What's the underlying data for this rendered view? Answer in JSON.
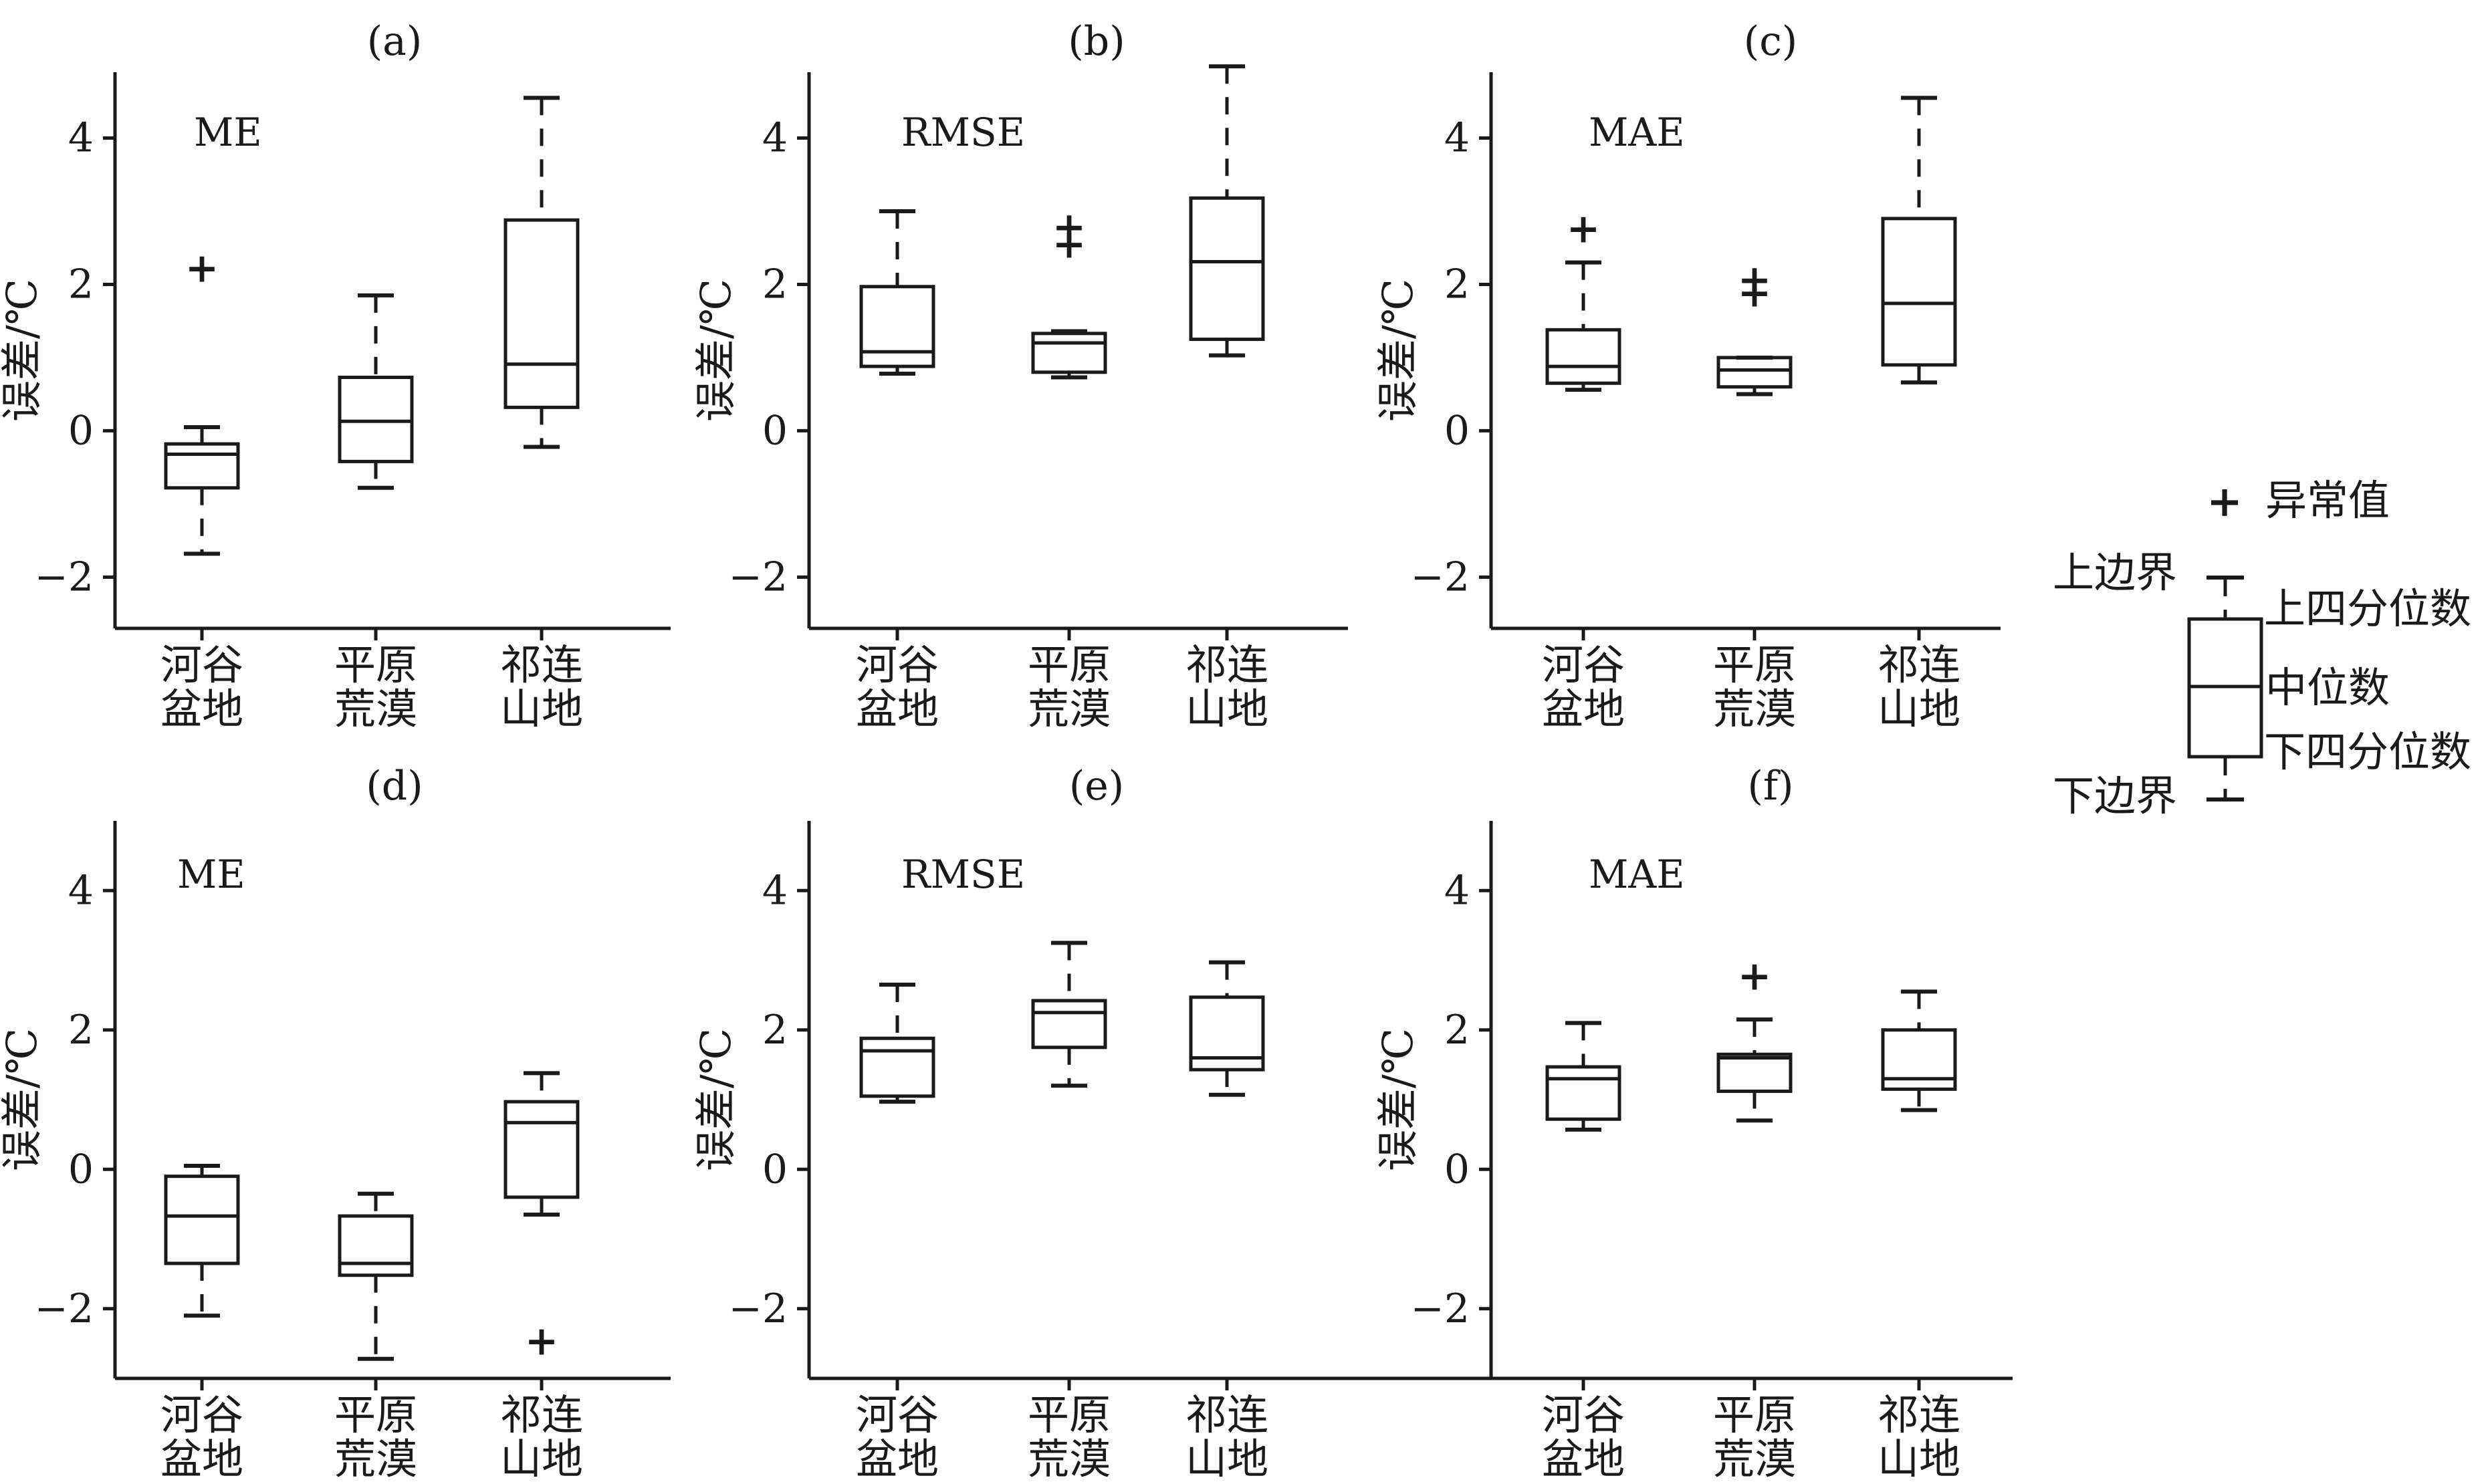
{
  "legend": {
    "outlier_label": "异常值",
    "upper_bound_label": "上边界",
    "upper_quartile_label": "上四分位数",
    "median_label": "中位数",
    "lower_quartile_label": "下四分位数",
    "lower_bound_label": "下边界",
    "outlier_symbol": "+"
  },
  "chart_data": [
    {
      "type": "box",
      "title": "(a)",
      "metric": "ME",
      "ylabel": "误差/℃",
      "ylim": [
        -2.7,
        4.9
      ],
      "yticks": [
        -2,
        0,
        2,
        4
      ],
      "ytick_labels": [
        "−2",
        "0",
        "2",
        "4"
      ],
      "categories": [
        "河谷\n盆地",
        "平原\n荒漠",
        "祁连\n山地"
      ],
      "boxes": [
        {
          "whisker_low": -1.68,
          "q1": -0.78,
          "median": -0.32,
          "q3": -0.18,
          "whisker_high": 0.05,
          "outliers": [
            2.22
          ]
        },
        {
          "whisker_low": -0.78,
          "q1": -0.42,
          "median": 0.13,
          "q3": 0.73,
          "whisker_high": 1.85,
          "outliers": []
        },
        {
          "whisker_low": -0.22,
          "q1": 0.32,
          "median": 0.91,
          "q3": 2.88,
          "whisker_high": 4.55,
          "outliers": []
        }
      ]
    },
    {
      "type": "box",
      "title": "(b)",
      "metric": "RMSE",
      "ylabel": "误差/℃",
      "ylim": [
        -2.7,
        4.9
      ],
      "yticks": [
        -2,
        0,
        2,
        4
      ],
      "ytick_labels": [
        "−2",
        "0",
        "2",
        "4"
      ],
      "categories": [
        "河谷\n盆地",
        "平原\n荒漠",
        "祁连\n山地"
      ],
      "boxes": [
        {
          "whisker_low": 0.78,
          "q1": 0.88,
          "median": 1.08,
          "q3": 1.97,
          "whisker_high": 3.0,
          "outliers": []
        },
        {
          "whisker_low": 0.73,
          "q1": 0.8,
          "median": 1.2,
          "q3": 1.33,
          "whisker_high": 1.36,
          "outliers": [
            2.55,
            2.78
          ]
        },
        {
          "whisker_low": 1.03,
          "q1": 1.25,
          "median": 2.31,
          "q3": 3.18,
          "whisker_high": 4.98,
          "outliers": []
        }
      ]
    },
    {
      "type": "box",
      "title": "(c)",
      "metric": "MAE",
      "ylabel": "误差/℃",
      "ylim": [
        -2.7,
        4.9
      ],
      "yticks": [
        -2,
        0,
        2,
        4
      ],
      "ytick_labels": [
        "−2",
        "0",
        "2",
        "4"
      ],
      "categories": [
        "河谷\n盆地",
        "平原\n荒漠",
        "祁连\n山地"
      ],
      "boxes": [
        {
          "whisker_low": 0.56,
          "q1": 0.65,
          "median": 0.88,
          "q3": 1.38,
          "whisker_high": 2.3,
          "outliers": [
            2.76
          ]
        },
        {
          "whisker_low": 0.5,
          "q1": 0.6,
          "median": 0.83,
          "q3": 1.0,
          "whisker_high": 1.0,
          "outliers": [
            1.88,
            2.06
          ]
        },
        {
          "whisker_low": 0.66,
          "q1": 0.9,
          "median": 1.74,
          "q3": 2.9,
          "whisker_high": 4.55,
          "outliers": []
        }
      ]
    },
    {
      "type": "box",
      "title": "(d)",
      "metric": "ME",
      "ylabel": "误差/℃",
      "ylim": [
        -3.0,
        5.0
      ],
      "yticks": [
        -2,
        0,
        2,
        4
      ],
      "ytick_labels": [
        "−2",
        "0",
        "2",
        "4"
      ],
      "categories": [
        "河谷\n盆地",
        "平原\n荒漠",
        "祁连\n山地"
      ],
      "boxes": [
        {
          "whisker_low": -2.1,
          "q1": -1.35,
          "median": -0.67,
          "q3": -0.1,
          "whisker_high": 0.05,
          "outliers": []
        },
        {
          "whisker_low": -2.72,
          "q1": -1.52,
          "median": -1.35,
          "q3": -0.67,
          "whisker_high": -0.35,
          "outliers": []
        },
        {
          "whisker_low": -0.65,
          "q1": -0.4,
          "median": 0.67,
          "q3": 0.97,
          "whisker_high": 1.38,
          "outliers": [
            -2.47
          ]
        }
      ]
    },
    {
      "type": "box",
      "title": "(e)",
      "metric": "RMSE",
      "ylabel": "误差/℃",
      "ylim": [
        -3.0,
        5.0
      ],
      "yticks": [
        -2,
        0,
        2,
        4
      ],
      "ytick_labels": [
        "−2",
        "0",
        "2",
        "4"
      ],
      "categories": [
        "河谷\n盆地",
        "平原\n荒漠",
        "祁连\n山地"
      ],
      "boxes": [
        {
          "whisker_low": 0.97,
          "q1": 1.05,
          "median": 1.7,
          "q3": 1.88,
          "whisker_high": 2.65,
          "outliers": []
        },
        {
          "whisker_low": 1.2,
          "q1": 1.75,
          "median": 2.25,
          "q3": 2.42,
          "whisker_high": 3.25,
          "outliers": []
        },
        {
          "whisker_low": 1.07,
          "q1": 1.43,
          "median": 1.6,
          "q3": 2.47,
          "whisker_high": 2.97,
          "outliers": []
        }
      ]
    },
    {
      "type": "box",
      "title": "(f)",
      "metric": "MAE",
      "ylabel": "误差/℃",
      "ylim": [
        -3.0,
        5.0
      ],
      "yticks": [
        -2,
        0,
        2,
        4
      ],
      "ytick_labels": [
        "−2",
        "0",
        "2",
        "4"
      ],
      "categories": [
        "河谷\n盆地",
        "平原\n荒漠",
        "祁连\n山地"
      ],
      "boxes": [
        {
          "whisker_low": 0.57,
          "q1": 0.72,
          "median": 1.3,
          "q3": 1.47,
          "whisker_high": 2.1,
          "outliers": []
        },
        {
          "whisker_low": 0.7,
          "q1": 1.12,
          "median": 1.6,
          "q3": 1.65,
          "whisker_high": 2.15,
          "outliers": [
            2.77
          ]
        },
        {
          "whisker_low": 0.85,
          "q1": 1.15,
          "median": 1.3,
          "q3": 2.0,
          "whisker_high": 2.55,
          "outliers": []
        }
      ]
    }
  ]
}
